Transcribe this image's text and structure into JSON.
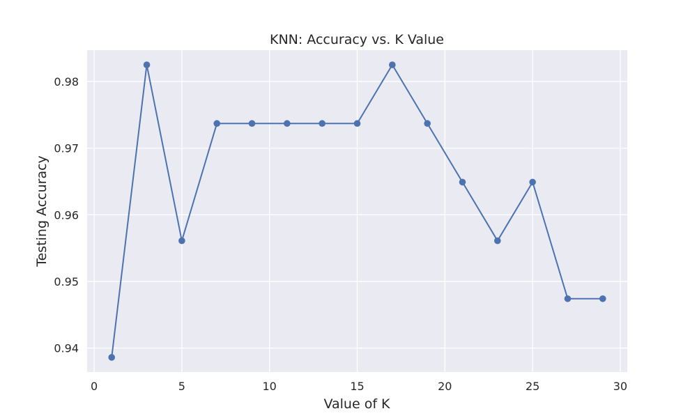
{
  "chart_data": {
    "type": "line",
    "title": "KNN: Accuracy vs. K Value",
    "xlabel": "Value of K",
    "ylabel": "Testing Accuracy",
    "x": [
      1,
      3,
      5,
      7,
      9,
      11,
      13,
      15,
      17,
      19,
      21,
      23,
      25,
      27,
      29
    ],
    "series": [
      {
        "values": [
          0.9386,
          0.9825,
          0.9561,
          0.9737,
          0.9737,
          0.9737,
          0.9737,
          0.9737,
          0.9825,
          0.9737,
          0.9649,
          0.9561,
          0.9649,
          0.9474,
          0.9474
        ]
      }
    ],
    "xlim": [
      -0.4,
      30.4
    ],
    "ylim": [
      0.9364,
      0.9847
    ],
    "xticks": [
      0,
      5,
      10,
      15,
      20,
      25,
      30
    ],
    "yticks": [
      0.94,
      0.95,
      0.96,
      0.97,
      0.98
    ],
    "ytick_labels": [
      "0.94",
      "0.95",
      "0.96",
      "0.97",
      "0.98"
    ],
    "grid": true,
    "style": "seaborn-darkgrid",
    "marker": "circle",
    "colors": {
      "line": "#4c72b0",
      "plot_background": "#eaeaf2",
      "grid": "#ffffff",
      "text": "#262626"
    }
  }
}
